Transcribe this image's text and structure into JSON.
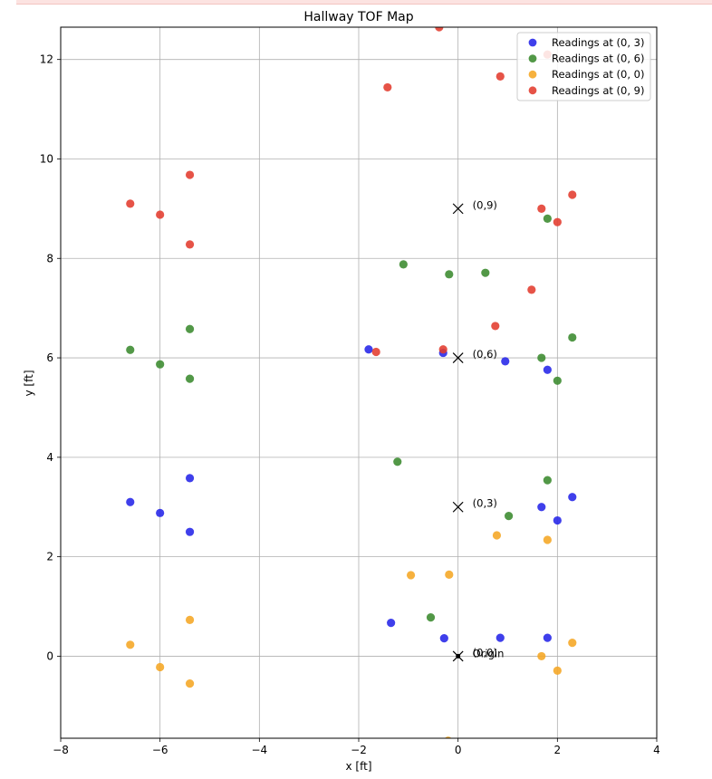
{
  "chart_data": {
    "type": "scatter",
    "title": "Hallway TOF Map",
    "xlabel": "x [ft]",
    "ylabel": "y [ft]",
    "xlim": [
      -8,
      4
    ],
    "ylim": [
      -1.65,
      12.65
    ],
    "xticks": [
      -8,
      -6,
      -4,
      -2,
      0,
      2,
      4
    ],
    "yticks": [
      0,
      2,
      4,
      6,
      8,
      10,
      12
    ],
    "grid": true,
    "legend_position": "top-right",
    "series": [
      {
        "name": "Readings at (0, 3)",
        "color": "#2424e8",
        "points": [
          [
            -6.6,
            3.1
          ],
          [
            -6.0,
            2.88
          ],
          [
            -5.4,
            3.58
          ],
          [
            -5.4,
            2.5
          ],
          [
            -1.35,
            0.67
          ],
          [
            -0.28,
            0.36
          ],
          [
            0.85,
            0.37
          ],
          [
            1.8,
            0.37
          ],
          [
            -1.8,
            6.17
          ],
          [
            -0.3,
            6.1
          ],
          [
            0.95,
            5.93
          ],
          [
            1.8,
            5.76
          ],
          [
            1.68,
            3.0
          ],
          [
            2.0,
            2.73
          ],
          [
            2.3,
            3.2
          ]
        ]
      },
      {
        "name": "Readings at (0, 6)",
        "color": "#3a8a2e",
        "points": [
          [
            -6.6,
            6.16
          ],
          [
            -6.0,
            5.87
          ],
          [
            -5.4,
            6.58
          ],
          [
            -5.4,
            5.58
          ],
          [
            -1.1,
            7.88
          ],
          [
            -0.18,
            7.68
          ],
          [
            0.55,
            7.71
          ],
          [
            -1.22,
            3.91
          ],
          [
            -0.55,
            0.78
          ],
          [
            1.02,
            2.82
          ],
          [
            1.8,
            3.54
          ],
          [
            1.68,
            6.0
          ],
          [
            2.0,
            5.54
          ],
          [
            2.3,
            6.41
          ],
          [
            1.8,
            8.8
          ]
        ]
      },
      {
        "name": "Readings at (0, 0)",
        "color": "#f5a623",
        "points": [
          [
            -6.6,
            0.23
          ],
          [
            -6.0,
            -0.22
          ],
          [
            -5.4,
            0.73
          ],
          [
            -5.4,
            -0.55
          ],
          [
            -0.95,
            1.63
          ],
          [
            -0.18,
            1.64
          ],
          [
            0.78,
            2.43
          ],
          [
            1.8,
            2.34
          ],
          [
            1.68,
            0.0
          ],
          [
            2.0,
            -0.29
          ],
          [
            2.3,
            0.27
          ],
          [
            -0.2,
            -1.7
          ]
        ]
      },
      {
        "name": "Readings at (0, 9)",
        "color": "#e23b2e",
        "points": [
          [
            -6.6,
            9.1
          ],
          [
            -6.0,
            8.88
          ],
          [
            -5.4,
            9.68
          ],
          [
            -5.4,
            8.28
          ],
          [
            -1.42,
            11.44
          ],
          [
            -0.38,
            12.65
          ],
          [
            0.85,
            11.66
          ],
          [
            1.8,
            12.1
          ],
          [
            -1.65,
            6.12
          ],
          [
            -0.3,
            6.17
          ],
          [
            0.75,
            6.64
          ],
          [
            1.48,
            7.37
          ],
          [
            1.68,
            9.0
          ],
          [
            2.0,
            8.73
          ],
          [
            2.3,
            9.28
          ]
        ]
      }
    ],
    "markers": [
      {
        "x": 0,
        "y": 9,
        "label": "(0,9)"
      },
      {
        "x": 0,
        "y": 6,
        "label": "(0,6)"
      },
      {
        "x": 0,
        "y": 3,
        "label": "(0,3)"
      },
      {
        "x": 0,
        "y": 0,
        "label": "(0,0)"
      }
    ],
    "origin": {
      "x": 0,
      "y": 0,
      "label": "Origin"
    }
  }
}
